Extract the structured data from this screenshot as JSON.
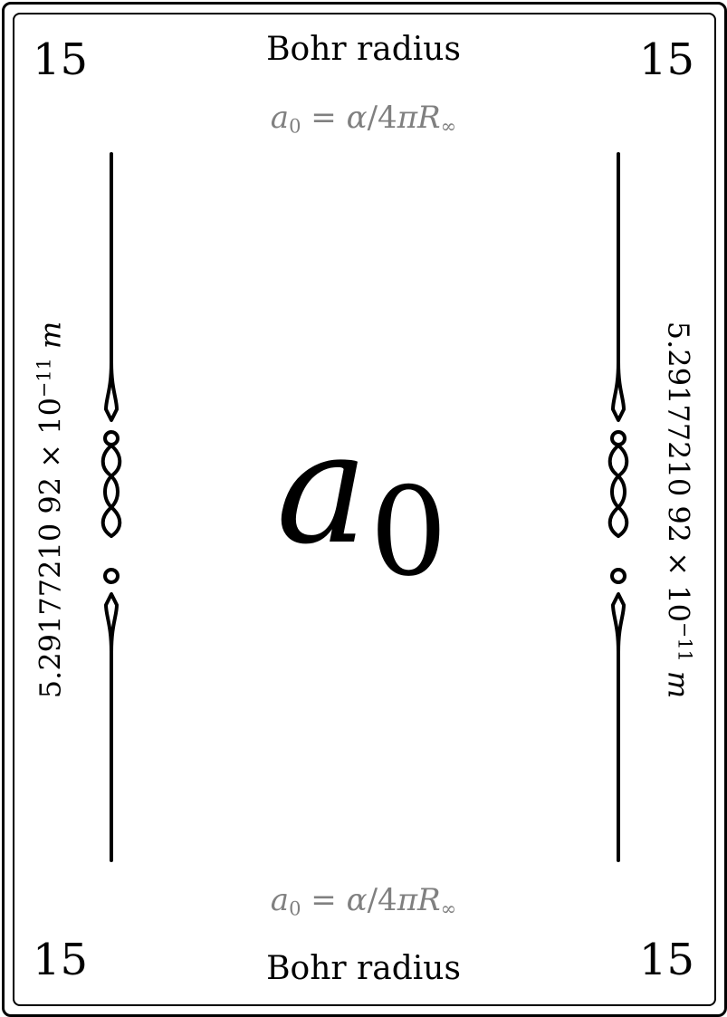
{
  "card": {
    "number": "15",
    "name": "Bohr radius",
    "formula": {
      "lhs": "a",
      "lhs_sub": "0",
      "eq": "=",
      "alpha": "α",
      "slash": "/",
      "four": "4",
      "pi": "π",
      "R": "R",
      "R_sub": "∞"
    },
    "value": {
      "mantissa": "5.29177210 92",
      "times": "×",
      "base": "10",
      "exponent": "−11",
      "unit": "m"
    },
    "symbol": {
      "letter": "a",
      "subscript": "0"
    }
  }
}
